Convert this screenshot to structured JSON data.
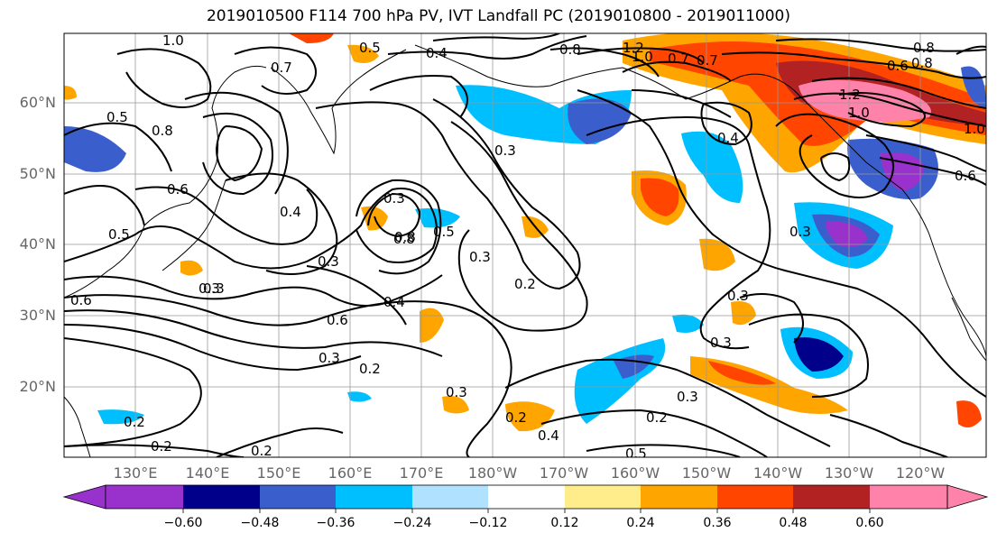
{
  "title": "2019010500 F114 700 hPa PV, IVT Landfall PC (2019010800 - 2019011000)",
  "lat_labels": [
    "60°N",
    "50°N",
    "40°N",
    "30°N",
    "20°N"
  ],
  "lon_labels": [
    "130°E",
    "140°E",
    "150°E",
    "160°E",
    "170°E",
    "180°W",
    "170°W",
    "160°W",
    "150°W",
    "140°W",
    "130°W",
    "120°W"
  ],
  "contour_labels": [
    "1.0",
    "0.5",
    "0.4",
    "0.7",
    "0.8",
    "1.2",
    "1.0",
    "0.7",
    "0.8",
    "1.0",
    "0.5",
    "0.8",
    "0.8",
    "0.6",
    "0.4",
    "0.5",
    "0.6",
    "0.3",
    "0.3",
    "0.8",
    "0.3",
    "0.2",
    "0.3",
    "0.4",
    "0.6",
    "0.3",
    "0.2",
    "0.3",
    "0.2",
    "0.4",
    "0.3",
    "0.3",
    "0.3",
    "0.2",
    "0.5",
    "0.2",
    "0.2",
    "0.2",
    "0.5",
    "0.6",
    "0.3",
    "0.3",
    "0.4",
    "1.2",
    "1.0",
    "0.6",
    "0.3",
    "0.7",
    "0.8"
  ],
  "colorbar": {
    "ticks": [
      "−0.60",
      "−0.48",
      "−0.36",
      "−0.24",
      "−0.12",
      "0.12",
      "0.24",
      "0.36",
      "0.48",
      "0.60"
    ],
    "colors": [
      "#9932cc",
      "#00008b",
      "#3a5fcd",
      "#00bfff",
      "#b0e2ff",
      "#ffffff",
      "#ffec8b",
      "#ffa500",
      "#ff4500",
      "#b22222",
      "#ff82ab"
    ]
  },
  "colors": {
    "label_gray": "#666666",
    "grid": "#999999"
  }
}
